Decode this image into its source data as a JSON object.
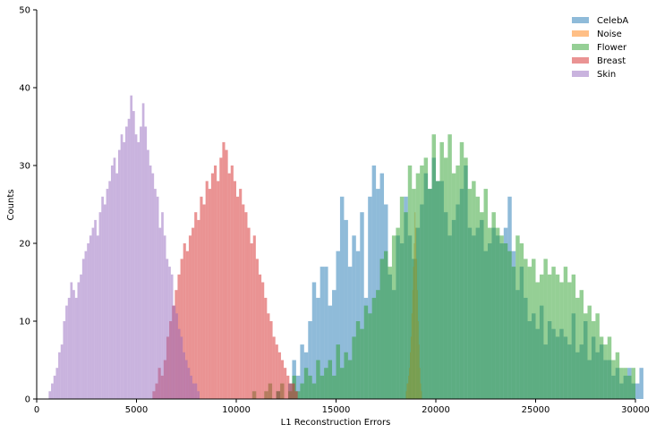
{
  "chart_data": {
    "type": "histogram",
    "xlabel": "L1 Reconstruction Errors",
    "ylabel": "Counts",
    "xlim": [
      0,
      30000
    ],
    "ylim": [
      0,
      50
    ],
    "xticks": [
      0,
      5000,
      10000,
      15000,
      20000,
      25000,
      30000
    ],
    "yticks": [
      0,
      10,
      20,
      30,
      40,
      50
    ],
    "legend_position": "top-right",
    "grid": false,
    "series": [
      {
        "name": "CelebA",
        "color": "#1f77b4",
        "bin_start": 12000,
        "bin_width": 200,
        "counts": [
          1,
          0,
          0,
          2,
          5,
          3,
          7,
          6,
          10,
          15,
          13,
          17,
          17,
          12,
          14,
          19,
          26,
          23,
          17,
          21,
          19,
          24,
          13,
          26,
          30,
          27,
          29,
          25,
          16,
          14,
          21,
          20,
          26,
          21,
          18,
          22,
          25,
          29,
          27,
          31,
          28,
          28,
          24,
          21,
          23,
          25,
          27,
          30,
          22,
          21,
          22,
          23,
          19,
          20,
          22,
          21,
          20,
          22,
          26,
          19,
          14,
          17,
          13,
          10,
          11,
          9,
          12,
          7,
          10,
          9,
          8,
          9,
          8,
          7,
          11,
          6,
          7,
          10,
          5,
          8,
          6,
          7,
          5,
          5,
          3,
          4,
          2,
          3,
          4,
          2,
          2,
          4
        ]
      },
      {
        "name": "Noise",
        "color": "#ff7f0e",
        "bin_start": 18500,
        "bin_width": 40,
        "counts": [
          1,
          2,
          2,
          3,
          4,
          6,
          8,
          11,
          14,
          17,
          20,
          24,
          22,
          18,
          14,
          10,
          7,
          4,
          2,
          1
        ]
      },
      {
        "name": "Flower",
        "color": "#2ca02c",
        "bin_start": 10800,
        "bin_width": 200,
        "counts": [
          1,
          0,
          0,
          1,
          2,
          0,
          1,
          2,
          0,
          1,
          3,
          1,
          2,
          4,
          3,
          2,
          5,
          3,
          4,
          5,
          3,
          7,
          4,
          6,
          5,
          8,
          10,
          9,
          12,
          11,
          13,
          14,
          18,
          19,
          17,
          21,
          22,
          26,
          24,
          30,
          27,
          29,
          30,
          31,
          27,
          34,
          28,
          33,
          31,
          34,
          29,
          30,
          33,
          31,
          27,
          28,
          26,
          24,
          27,
          22,
          24,
          22,
          21,
          20,
          19,
          17,
          21,
          20,
          18,
          17,
          18,
          15,
          16,
          18,
          16,
          17,
          16,
          15,
          17,
          15,
          16,
          13,
          14,
          11,
          12,
          10,
          11,
          8,
          7,
          8,
          5,
          6,
          4,
          4,
          3,
          4
        ]
      },
      {
        "name": "Breast",
        "color": "#d62728",
        "bin_start": 5800,
        "bin_width": 140,
        "counts": [
          1,
          2,
          4,
          3,
          5,
          8,
          10,
          12,
          14,
          16,
          18,
          20,
          19,
          21,
          22,
          24,
          23,
          26,
          25,
          28,
          27,
          29,
          30,
          28,
          31,
          33,
          32,
          29,
          30,
          28,
          26,
          27,
          25,
          24,
          22,
          20,
          21,
          18,
          16,
          15,
          13,
          11,
          10,
          8,
          7,
          6,
          5,
          4,
          3,
          2,
          2,
          1
        ]
      },
      {
        "name": "Skin",
        "color": "#9467bd",
        "bin_start": 600,
        "bin_width": 120,
        "counts": [
          1,
          2,
          3,
          4,
          6,
          7,
          10,
          12,
          13,
          15,
          14,
          13,
          15,
          16,
          18,
          19,
          20,
          21,
          22,
          23,
          21,
          24,
          26,
          25,
          27,
          28,
          30,
          31,
          29,
          32,
          34,
          33,
          35,
          36,
          39,
          37,
          34,
          33,
          35,
          38,
          35,
          32,
          30,
          29,
          27,
          26,
          22,
          24,
          21,
          18,
          17,
          16,
          12,
          11,
          9,
          8,
          6,
          5,
          4,
          3,
          2,
          2,
          1
        ]
      }
    ]
  }
}
